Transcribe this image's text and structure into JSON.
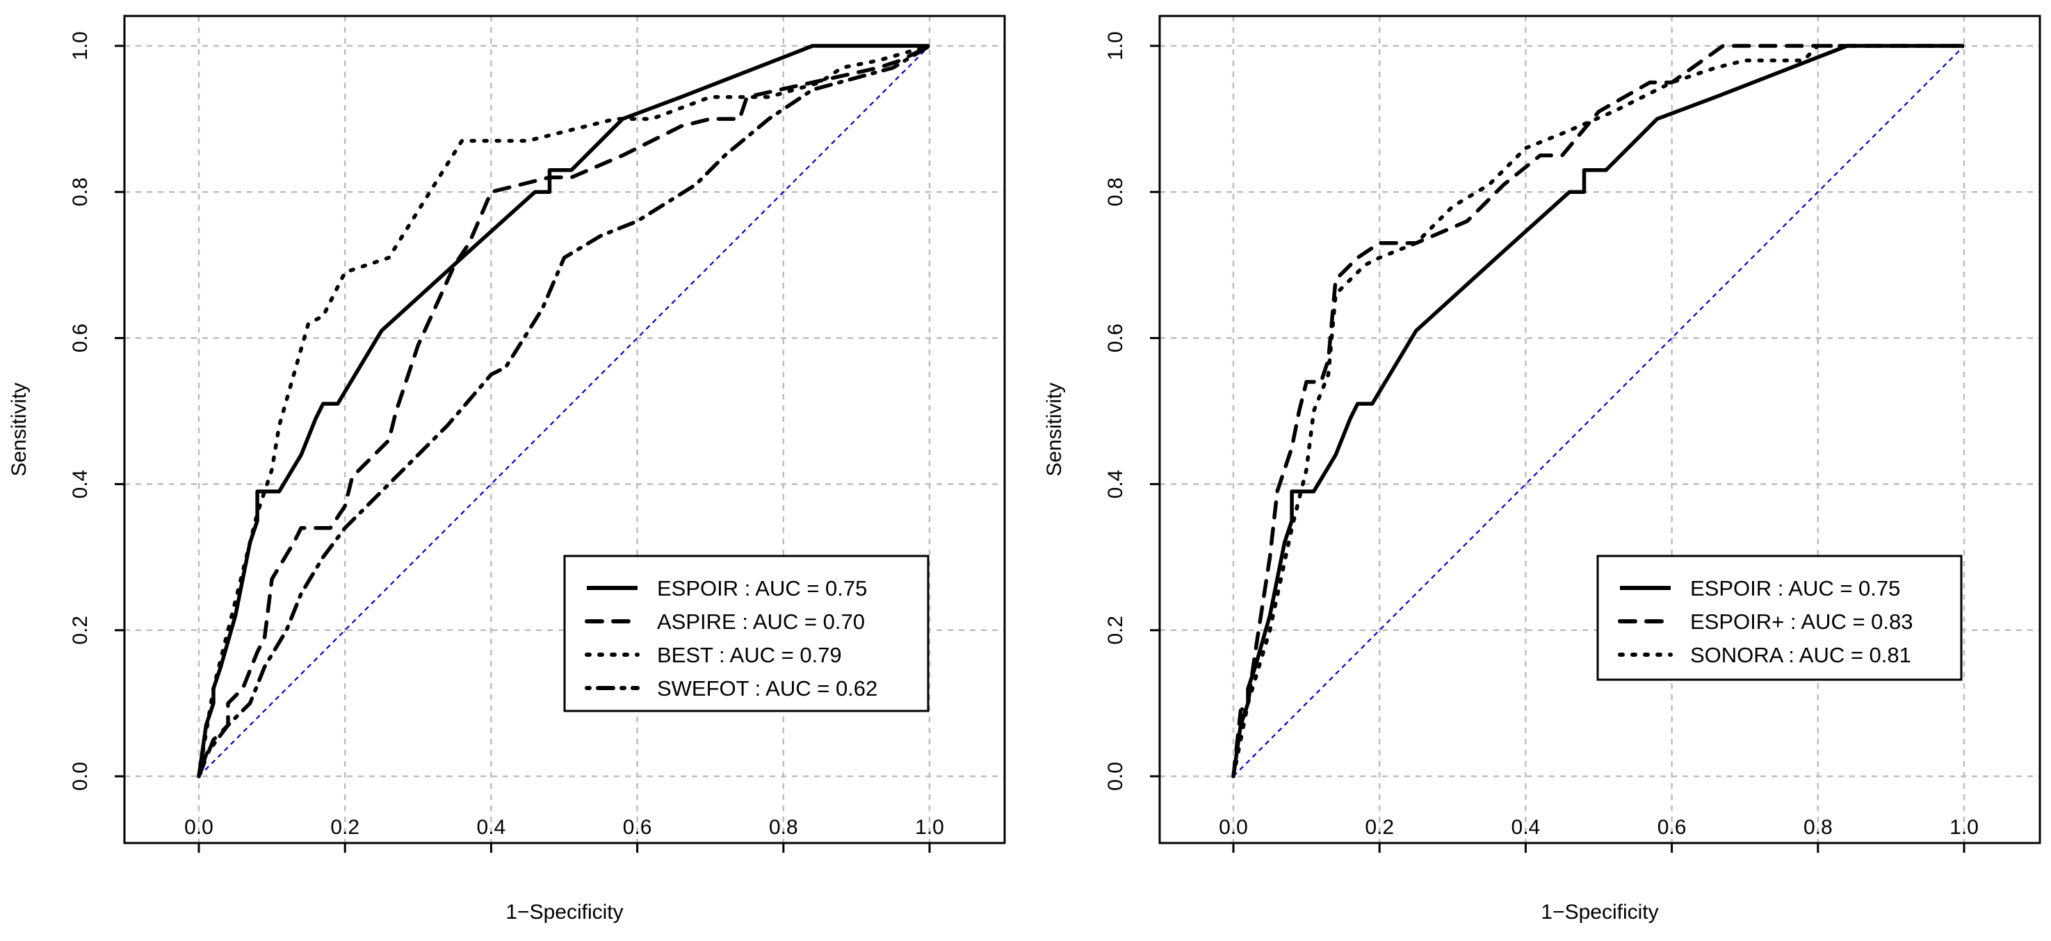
{
  "chart_data": [
    {
      "type": "line",
      "title": "",
      "xlabel": "1−Specificity",
      "ylabel": "Sensitivity",
      "xlim": [
        -0.1,
        1.1
      ],
      "ylim": [
        -0.05,
        1.05
      ],
      "xticks": [
        "0.0",
        "0.2",
        "0.4",
        "0.6",
        "0.8",
        "1.0"
      ],
      "yticks": [
        "0.0",
        "0.2",
        "0.4",
        "0.6",
        "0.8",
        "1.0"
      ],
      "grid": true,
      "legend_position": "bottom-right",
      "reference_line": {
        "name": "chance",
        "color": "#0000cc",
        "x": [
          0,
          1
        ],
        "y": [
          0,
          1
        ]
      },
      "series": [
        {
          "name": "ESPOIR",
          "legend": "ESPOIR : AUC = 0.75",
          "style": "solid",
          "x": [
            0,
            0.01,
            0.02,
            0.02,
            0.03,
            0.05,
            0.07,
            0.08,
            0.08,
            0.11,
            0.14,
            0.16,
            0.17,
            0.19,
            0.25,
            0.36,
            0.46,
            0.48,
            0.48,
            0.51,
            0.58,
            0.66,
            0.84,
            1
          ],
          "y": [
            0,
            0.07,
            0.1,
            0.12,
            0.15,
            0.22,
            0.32,
            0.35,
            0.39,
            0.39,
            0.44,
            0.49,
            0.51,
            0.51,
            0.61,
            0.71,
            0.8,
            0.8,
            0.83,
            0.83,
            0.9,
            0.93,
            1,
            1
          ]
        },
        {
          "name": "ASPIRE",
          "legend": "ASPIRE : AUC = 0.70",
          "style": "dashed",
          "x": [
            0,
            0.02,
            0.04,
            0.04,
            0.06,
            0.08,
            0.09,
            0.1,
            0.13,
            0.14,
            0.18,
            0.2,
            0.21,
            0.26,
            0.27,
            0.3,
            0.35,
            0.37,
            0.4,
            0.48,
            0.51,
            0.58,
            0.66,
            0.7,
            0.74,
            0.75,
            0.84,
            0.93,
            0.96,
            1
          ],
          "y": [
            0,
            0.05,
            0.07,
            0.1,
            0.12,
            0.17,
            0.19,
            0.27,
            0.32,
            0.34,
            0.34,
            0.37,
            0.41,
            0.46,
            0.5,
            0.59,
            0.7,
            0.73,
            0.8,
            0.82,
            0.82,
            0.85,
            0.89,
            0.9,
            0.9,
            0.93,
            0.95,
            0.97,
            0.98,
            1
          ]
        },
        {
          "name": "BEST",
          "legend": "BEST : AUC = 0.79",
          "style": "dotted",
          "x": [
            0,
            0.02,
            0.04,
            0.05,
            0.08,
            0.1,
            0.11,
            0.13,
            0.15,
            0.17,
            0.2,
            0.26,
            0.31,
            0.36,
            0.45,
            0.57,
            0.62,
            0.7,
            0.78,
            0.85,
            0.88,
            0.93,
            1
          ],
          "y": [
            0,
            0.12,
            0.2,
            0.24,
            0.36,
            0.42,
            0.48,
            0.55,
            0.62,
            0.63,
            0.69,
            0.71,
            0.79,
            0.87,
            0.87,
            0.9,
            0.9,
            0.93,
            0.93,
            0.95,
            0.97,
            0.98,
            1
          ]
        },
        {
          "name": "SWEFOT",
          "legend": "SWEFOT : AUC = 0.62",
          "style": "dotdash",
          "x": [
            0,
            0.01,
            0.04,
            0.07,
            0.09,
            0.12,
            0.14,
            0.17,
            0.2,
            0.27,
            0.34,
            0.4,
            0.42,
            0.47,
            0.5,
            0.55,
            0.6,
            0.68,
            0.72,
            0.78,
            0.84,
            0.95,
            1
          ],
          "y": [
            0,
            0.03,
            0.07,
            0.1,
            0.15,
            0.2,
            0.25,
            0.3,
            0.34,
            0.41,
            0.48,
            0.55,
            0.56,
            0.64,
            0.71,
            0.74,
            0.76,
            0.81,
            0.85,
            0.9,
            0.94,
            0.97,
            1
          ]
        }
      ]
    },
    {
      "type": "line",
      "title": "",
      "xlabel": "1−Specificity",
      "ylabel": "Sensitivity",
      "xlim": [
        -0.1,
        1.1
      ],
      "ylim": [
        -0.05,
        1.05
      ],
      "xticks": [
        "0.0",
        "0.2",
        "0.4",
        "0.6",
        "0.8",
        "1.0"
      ],
      "yticks": [
        "0.0",
        "0.2",
        "0.4",
        "0.6",
        "0.8",
        "1.0"
      ],
      "grid": true,
      "legend_position": "bottom-right",
      "reference_line": {
        "name": "chance",
        "color": "#0000cc",
        "x": [
          0,
          1
        ],
        "y": [
          0,
          1
        ]
      },
      "series": [
        {
          "name": "ESPOIR",
          "legend": "ESPOIR : AUC = 0.75",
          "style": "solid",
          "x": [
            0,
            0.01,
            0.02,
            0.02,
            0.03,
            0.05,
            0.07,
            0.08,
            0.08,
            0.11,
            0.14,
            0.16,
            0.17,
            0.19,
            0.25,
            0.36,
            0.46,
            0.48,
            0.48,
            0.51,
            0.58,
            0.66,
            0.84,
            1
          ],
          "y": [
            0,
            0.07,
            0.1,
            0.12,
            0.15,
            0.22,
            0.32,
            0.35,
            0.39,
            0.39,
            0.44,
            0.49,
            0.51,
            0.51,
            0.61,
            0.71,
            0.8,
            0.8,
            0.83,
            0.83,
            0.9,
            0.93,
            1,
            1
          ]
        },
        {
          "name": "ESPOIR+",
          "legend": "ESPOIR+ : AUC = 0.83",
          "style": "dashed",
          "x": [
            0,
            0.01,
            0.02,
            0.03,
            0.05,
            0.06,
            0.08,
            0.09,
            0.1,
            0.12,
            0.13,
            0.14,
            0.17,
            0.2,
            0.25,
            0.32,
            0.37,
            0.42,
            0.45,
            0.5,
            0.57,
            0.6,
            0.67,
            1
          ],
          "y": [
            0,
            0.09,
            0.1,
            0.17,
            0.3,
            0.39,
            0.45,
            0.5,
            0.54,
            0.54,
            0.57,
            0.68,
            0.71,
            0.73,
            0.73,
            0.76,
            0.81,
            0.85,
            0.85,
            0.91,
            0.95,
            0.95,
            1,
            1
          ]
        },
        {
          "name": "SONORA",
          "legend": "SONORA : AUC = 0.81",
          "style": "dotted",
          "x": [
            0,
            0.02,
            0.05,
            0.08,
            0.1,
            0.11,
            0.13,
            0.14,
            0.18,
            0.2,
            0.25,
            0.3,
            0.35,
            0.4,
            0.45,
            0.52,
            0.6,
            0.66,
            0.7,
            0.78,
            0.8,
            1
          ],
          "y": [
            0,
            0.1,
            0.2,
            0.34,
            0.42,
            0.5,
            0.55,
            0.66,
            0.7,
            0.71,
            0.73,
            0.78,
            0.81,
            0.86,
            0.88,
            0.91,
            0.95,
            0.97,
            0.98,
            0.98,
            1,
            1
          ]
        }
      ]
    }
  ]
}
